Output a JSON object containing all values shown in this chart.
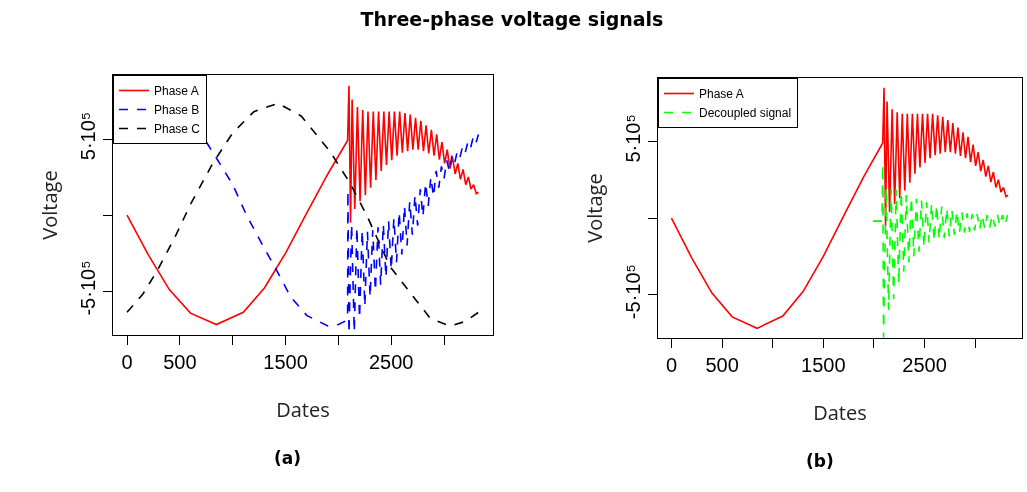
{
  "chart_data": [
    {
      "type": "line",
      "title": "Three-phase voltage signals",
      "xlabel": "Dates",
      "ylabel": "Voltage",
      "annotations": [
        "(a)"
      ],
      "legend": "top left",
      "xlim": [
        -133,
        3463
      ],
      "xticks": [
        0,
        500,
        {
          "value": 1000,
          "label": null
        },
        1500,
        {
          "value": 2000,
          "label": null
        },
        2500,
        {
          "value": 3000,
          "label": null
        }
      ],
      "ylim": [
        -789000,
        921000
      ],
      "yticks": [
        {
          "value": -500000,
          "label": "-5·10⁵"
        },
        {
          "value": 0,
          "label": null
        },
        {
          "value": 500000,
          "label": "5·10⁵"
        }
      ],
      "series": [
        {
          "name": "Phase A",
          "color": "#ff0000",
          "line_style": "solid",
          "x": [
            0,
            200,
            400,
            600,
            845,
            1100,
            1300,
            1500,
            1700,
            1900,
            2087,
            2100,
            2115,
            2130,
            2155,
            2180,
            2205,
            2230,
            2255,
            2280,
            2305,
            2330,
            2355,
            2380,
            2405,
            2430,
            2455,
            2480,
            2505,
            2530,
            2555,
            2580,
            2605,
            2630,
            2655,
            2680,
            2705,
            2730,
            2755,
            2780,
            2805,
            2830,
            2855,
            2880,
            2905,
            2930,
            2955,
            2980,
            3005,
            3030,
            3055,
            3080,
            3105,
            3130,
            3155,
            3180,
            3205,
            3230,
            3255,
            3280,
            3305,
            3325
          ],
          "values": [
            0,
            -260000,
            -490000,
            -645000,
            -720000,
            -640000,
            -480000,
            -250000,
            13000,
            270000,
            490000,
            850000,
            -50000,
            760000,
            40000,
            710000,
            90000,
            690000,
            130000,
            680000,
            180000,
            680000,
            230000,
            680000,
            290000,
            680000,
            330000,
            680000,
            360000,
            680000,
            390000,
            680000,
            410000,
            670000,
            420000,
            660000,
            430000,
            640000,
            430000,
            620000,
            420000,
            590000,
            405000,
            560000,
            390000,
            530000,
            365000,
            480000,
            340000,
            430000,
            305000,
            380000,
            270000,
            340000,
            235000,
            300000,
            200000,
            250000,
            170000,
            200000,
            140000,
            150000
          ]
        },
        {
          "name": "Phase B",
          "color": "#0000ff",
          "line_style": "dashed",
          "x": [
            750,
            845,
            1000,
            1130,
            1300,
            1413,
            1550,
            1700,
            1900,
            2000,
            2087,
            2090,
            2100,
            2125,
            2150,
            2175,
            2200,
            2225,
            2250,
            2275,
            2300,
            2325,
            2350,
            2375,
            2400,
            2425,
            2450,
            2475,
            2500,
            2525,
            2550,
            2575,
            2600,
            2625,
            2650,
            2675,
            2700,
            2725,
            2750,
            2775,
            2800,
            2825,
            2850,
            2875,
            2900,
            2925,
            2950,
            2975,
            3000,
            3025,
            3050,
            3075,
            3100,
            3125,
            3150,
            3175,
            3200,
            3225,
            3250,
            3275,
            3300,
            3325
          ],
          "values": [
            480000,
            375000,
            200000,
            0,
            -220000,
            -360000,
            -540000,
            -660000,
            -730000,
            -720000,
            -690000,
            160000,
            -780000,
            -60000,
            -770000,
            -80000,
            -680000,
            -100000,
            -600000,
            -110000,
            -540000,
            -100000,
            -500000,
            -80000,
            -460000,
            -60000,
            -410000,
            -40000,
            -360000,
            -20000,
            -310000,
            20000,
            -260000,
            60000,
            -200000,
            90000,
            -130000,
            130000,
            -70000,
            170000,
            -10000,
            210000,
            60000,
            250000,
            120000,
            290000,
            180000,
            320000,
            240000,
            360000,
            290000,
            390000,
            340000,
            420000,
            380000,
            450000,
            410000,
            480000,
            440000,
            510000,
            470000,
            530000
          ]
        },
        {
          "name": "Phase C",
          "color": "#000000",
          "line_style": "dashed",
          "x": [
            0,
            150,
            290,
            450,
            600,
            811,
            1000,
            1200,
            1429,
            1650,
            1919,
            2110,
            2267,
            2490,
            2679,
            2870,
            3058,
            3200,
            3325
          ],
          "values": [
            -640000,
            -520000,
            -360000,
            -150000,
            70000,
            340000,
            540000,
            680000,
            735000,
            650000,
            420000,
            210000,
            0,
            -340000,
            -510000,
            -680000,
            -730000,
            -700000,
            -640000
          ]
        }
      ]
    },
    {
      "type": "line",
      "xlabel": "Dates",
      "ylabel": "Voltage",
      "annotations": [
        "(b)"
      ],
      "legend": "top left",
      "xlim": [
        -133,
        3463
      ],
      "xticks": [
        0,
        500,
        {
          "value": 1000,
          "label": null
        },
        1500,
        {
          "value": 2000,
          "label": null
        },
        2500,
        {
          "value": 3000,
          "label": null
        }
      ],
      "ylim": [
        -783000,
        914000
      ],
      "yticks": [
        {
          "value": -500000,
          "label": "-5·10⁵"
        },
        {
          "value": 0,
          "label": null
        },
        {
          "value": 500000,
          "label": "5·10⁵"
        }
      ],
      "series": [
        {
          "name": "Phase A",
          "color": "#ff0000",
          "line_style": "solid",
          "x": [
            0,
            200,
            400,
            600,
            845,
            1100,
            1300,
            1500,
            1700,
            1900,
            2087,
            2100,
            2115,
            2130,
            2155,
            2180,
            2205,
            2230,
            2255,
            2280,
            2305,
            2330,
            2355,
            2380,
            2405,
            2430,
            2455,
            2480,
            2505,
            2530,
            2555,
            2580,
            2605,
            2630,
            2655,
            2680,
            2705,
            2730,
            2755,
            2780,
            2805,
            2830,
            2855,
            2880,
            2905,
            2930,
            2955,
            2980,
            3005,
            3030,
            3055,
            3080,
            3105,
            3130,
            3155,
            3180,
            3205,
            3230,
            3255,
            3280,
            3305,
            3325
          ],
          "values": [
            0,
            -260000,
            -490000,
            -645000,
            -720000,
            -640000,
            -480000,
            -250000,
            13000,
            270000,
            490000,
            850000,
            -50000,
            760000,
            40000,
            710000,
            90000,
            690000,
            130000,
            680000,
            180000,
            680000,
            230000,
            680000,
            290000,
            680000,
            330000,
            680000,
            360000,
            680000,
            390000,
            680000,
            410000,
            670000,
            420000,
            660000,
            430000,
            640000,
            430000,
            620000,
            420000,
            590000,
            405000,
            560000,
            390000,
            530000,
            365000,
            480000,
            340000,
            430000,
            305000,
            380000,
            270000,
            340000,
            235000,
            300000,
            200000,
            250000,
            170000,
            200000,
            140000,
            150000
          ]
        },
        {
          "name": "Decoupled signal",
          "color": "#00ff00",
          "line_style": "dashed",
          "x": [
            1990,
            2080,
            2088,
            2095,
            2120,
            2145,
            2170,
            2195,
            2220,
            2245,
            2270,
            2295,
            2320,
            2345,
            2370,
            2395,
            2420,
            2445,
            2470,
            2495,
            2520,
            2545,
            2570,
            2595,
            2620,
            2645,
            2670,
            2695,
            2720,
            2745,
            2770,
            2795,
            2820,
            2845,
            2870,
            2895,
            2920,
            2945,
            2970,
            2995,
            3020,
            3045,
            3070,
            3095,
            3120,
            3145,
            3170,
            3195,
            3220,
            3245,
            3270,
            3295,
            3320
          ],
          "values": [
            -20000,
            -20000,
            350000,
            -780000,
            200000,
            -600000,
            190000,
            -530000,
            185000,
            -430000,
            170000,
            -350000,
            150000,
            -290000,
            135000,
            -250000,
            125000,
            -220000,
            115000,
            -190000,
            105000,
            -160000,
            95000,
            -150000,
            85000,
            -140000,
            75000,
            -130000,
            65000,
            -120000,
            55000,
            -110000,
            45000,
            -100000,
            35000,
            -95000,
            30000,
            -90000,
            25000,
            -80000,
            25000,
            -75000,
            20000,
            -70000,
            20000,
            -60000,
            20000,
            -55000,
            20000,
            -50000,
            20000,
            -45000,
            20000
          ]
        }
      ]
    }
  ]
}
